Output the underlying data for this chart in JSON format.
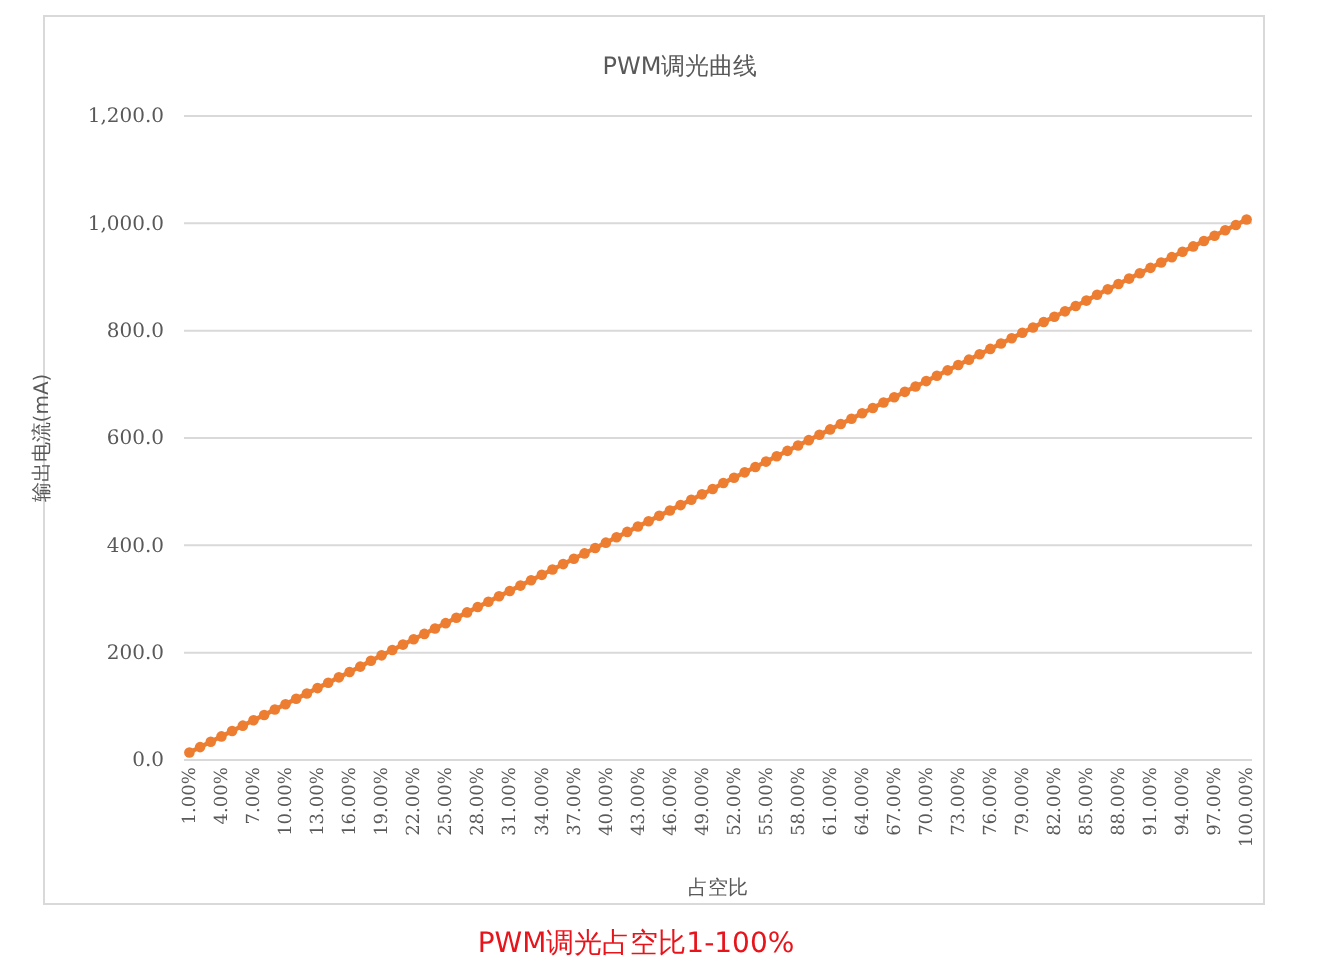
{
  "chart_data": {
    "type": "line",
    "title": "PWM调光曲线",
    "xlabel": "占空比",
    "ylabel": "输出电流(mA)",
    "annotations": [
      "PWM调光占空比1-100%"
    ],
    "categories": [
      "1.00%",
      null,
      null,
      "4.00%",
      null,
      null,
      "7.00%",
      null,
      null,
      "10.00%",
      null,
      null,
      "13.00%",
      null,
      null,
      "16.00%",
      null,
      null,
      "19.00%",
      null,
      null,
      "22.00%",
      null,
      null,
      "25.00%",
      null,
      null,
      "28.00%",
      null,
      null,
      "31.00%",
      null,
      null,
      "34.00%",
      null,
      null,
      "37.00%",
      null,
      null,
      "40.00%",
      null,
      null,
      "43.00%",
      null,
      null,
      "46.00%",
      null,
      null,
      "49.00%",
      null,
      null,
      "52.00%",
      null,
      null,
      "55.00%",
      null,
      null,
      "58.00%",
      null,
      null,
      "61.00%",
      null,
      null,
      "64.00%",
      null,
      null,
      "67.00%",
      null,
      null,
      "70.00%",
      null,
      null,
      "73.00%",
      null,
      null,
      "76.00%",
      null,
      null,
      "79.00%",
      null,
      null,
      "82.00%",
      null,
      null,
      "85.00%",
      null,
      null,
      "88.00%",
      null,
      null,
      "91.00%",
      null,
      null,
      "94.00%",
      null,
      null,
      "97.00%",
      null,
      null,
      "100.00%"
    ],
    "series": [
      {
        "color": "#ed7d31",
        "values": [
          14,
          24,
          34,
          44,
          54,
          64,
          74,
          84,
          94,
          104,
          114,
          124,
          134,
          144,
          154,
          164,
          174,
          185,
          195,
          205,
          215,
          225,
          235,
          245,
          255,
          265,
          275,
          285,
          295,
          305,
          315,
          325,
          335,
          345,
          355,
          365,
          375,
          385,
          395,
          405,
          415,
          425,
          435,
          445,
          455,
          465,
          475,
          485,
          495,
          505,
          516,
          526,
          536,
          546,
          556,
          566,
          576,
          586,
          596,
          606,
          616,
          626,
          636,
          646,
          656,
          666,
          676,
          686,
          696,
          706,
          716,
          726,
          736,
          746,
          756,
          766,
          776,
          786,
          796,
          806,
          816,
          826,
          836,
          846,
          856,
          867,
          877,
          887,
          897,
          907,
          917,
          927,
          937,
          947,
          957,
          967,
          977,
          987,
          997,
          1007
        ]
      }
    ],
    "ylim": [
      0,
      1200
    ],
    "yticks": [
      {
        "value": 0,
        "label": "0.0"
      },
      {
        "value": 200,
        "label": "200.0"
      },
      {
        "value": 400,
        "label": "400.0"
      },
      {
        "value": 600,
        "label": "600.0"
      },
      {
        "value": 800,
        "label": "800.0"
      },
      {
        "value": 1000,
        "label": "1,000.0"
      },
      {
        "value": 1200,
        "label": "1,200.0"
      }
    ],
    "grid": "y",
    "marker": "circle",
    "line_style": "solid"
  }
}
